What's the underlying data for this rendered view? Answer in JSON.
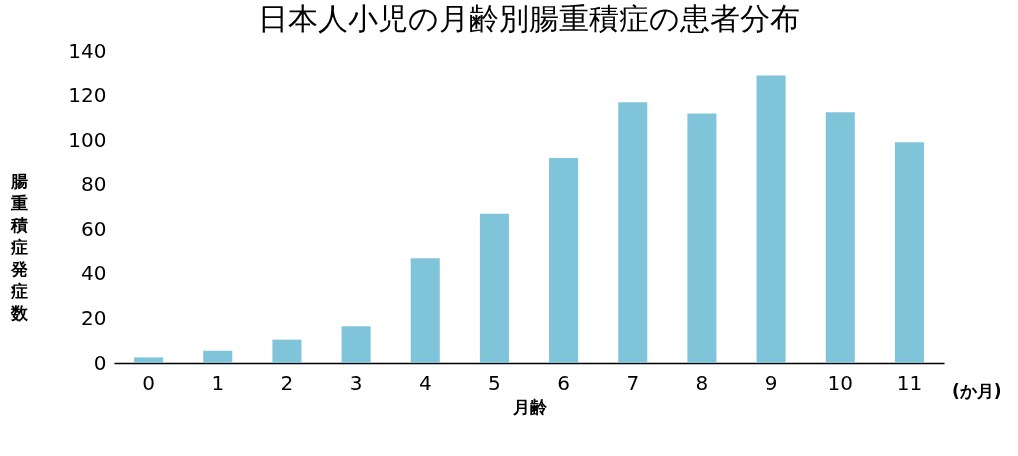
{
  "chart_data": {
    "type": "bar",
    "title": "日本人小児の月齢別腸重積症の患者分布",
    "xlabel": "月齢",
    "ylabel": "腸重積症発症数",
    "categories": [
      "0",
      "1",
      "2",
      "3",
      "4",
      "5",
      "6",
      "7",
      "8",
      "9",
      "10",
      "11"
    ],
    "values": [
      2.5,
      5.5,
      10.5,
      16.5,
      47,
      67,
      92,
      117,
      112,
      129,
      112.5,
      99
    ],
    "color": "#80c4da",
    "ylim": [
      0,
      140
    ],
    "yticks": [
      0,
      20,
      40,
      60,
      80,
      100,
      120,
      140
    ],
    "grid": false,
    "annotations": [
      "(か月)"
    ]
  }
}
